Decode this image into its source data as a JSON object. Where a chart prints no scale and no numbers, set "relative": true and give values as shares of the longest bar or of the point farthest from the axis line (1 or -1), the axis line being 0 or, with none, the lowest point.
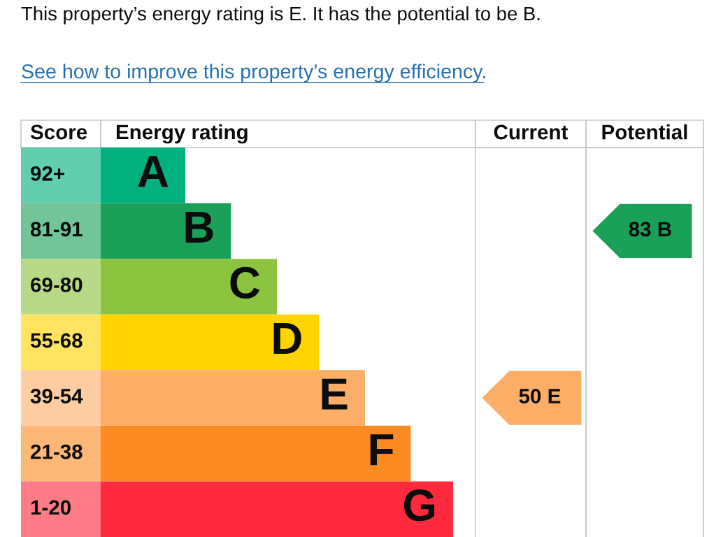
{
  "chart_data": {
    "type": "bar",
    "orientation": "horizontal",
    "relative": true,
    "title": "This property’s energy rating is E. It has the potential to be B.",
    "subtitle": "See how to improve this property’s energy efficiency.",
    "ylabel": "Score",
    "xlabel": "Energy rating",
    "categories": [
      "92+",
      "81-91",
      "69-80",
      "55-68",
      "39-54",
      "21-38",
      "1-20"
    ],
    "values": [
      0.24,
      0.37,
      0.5,
      0.62,
      0.75,
      0.88,
      1
    ],
    "colors": [
      "#00b07d",
      "#1ba05a",
      "#8cc43f",
      "#ffd400",
      "#fcad66",
      "#fc8a22",
      "#ff2a3e"
    ],
    "annotations": [
      {
        "text": "A",
        "x": 0.24,
        "y": "92+"
      },
      {
        "text": "B",
        "x": 0.37,
        "y": "81-91"
      },
      {
        "text": "C",
        "x": 0.5,
        "y": "69-80"
      },
      {
        "text": "D",
        "x": 0.62,
        "y": "55-68"
      },
      {
        "text": "E",
        "x": 0.75,
        "y": "39-54"
      },
      {
        "text": "F",
        "x": 0.88,
        "y": "21-38"
      },
      {
        "text": "G",
        "x": 1,
        "y": "1-20"
      },
      "Current",
      "Potential",
      "50 E",
      "83 B"
    ]
  }
}
